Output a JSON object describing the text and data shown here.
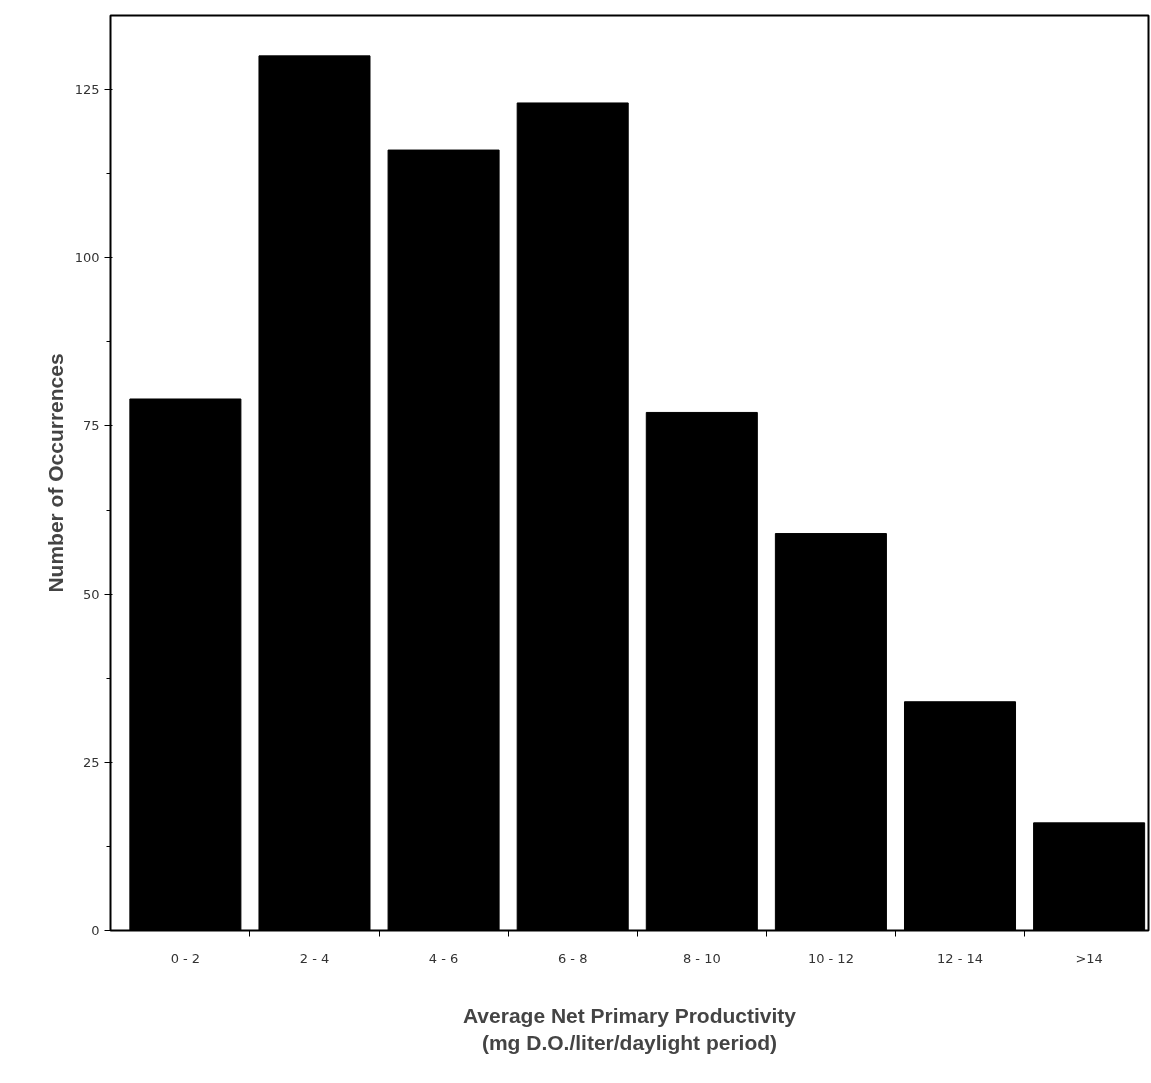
{
  "chart_data": {
    "type": "bar",
    "xlabel": "Average Net Primary Productivity\n(mg D.O./liter/daylight period)",
    "ylabel": "Number of Occurrences",
    "categories": [
      "0 - 2",
      "2 - 4",
      "4 - 6",
      "6 - 8",
      "8 - 10",
      "10 - 12",
      "12 - 14",
      ">14"
    ],
    "values": [
      79,
      130,
      116,
      123,
      77,
      59,
      34,
      16
    ],
    "color": "#000000",
    "ylim": [
      0,
      136
    ],
    "yticks": [
      0,
      25,
      50,
      75,
      100,
      125
    ],
    "grid": false
  }
}
